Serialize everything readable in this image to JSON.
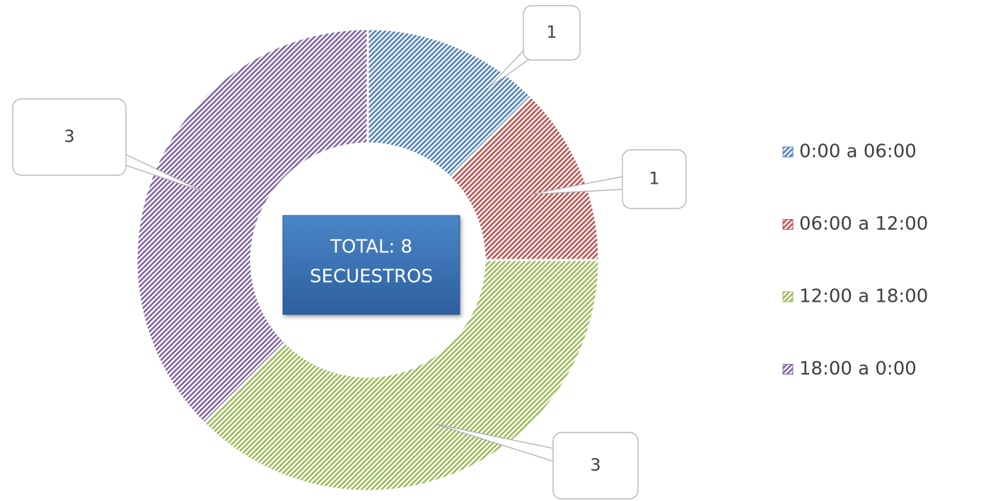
{
  "chart_data": {
    "type": "donut",
    "annotation": [
      "TOTAL: 8",
      "SECUESTROS"
    ],
    "categories": [
      "0:00 a 06:00",
      "06:00 a 12:00",
      "12:00 a 18:00",
      "18:00 a 0:00"
    ],
    "values": [
      1,
      1,
      3,
      3
    ],
    "colors": [
      "#4f81bd",
      "#c0504d",
      "#9bbb59",
      "#8064a2"
    ],
    "legend": "right"
  }
}
